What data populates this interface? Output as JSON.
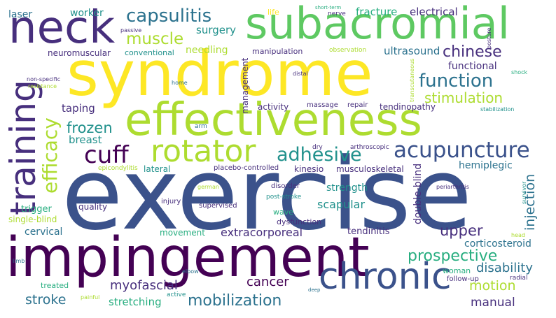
{
  "palette": {
    "purple": "#440154",
    "indigo": "#472f7d",
    "blue": "#3b528b",
    "slate": "#2c728e",
    "teal": "#21918c",
    "green": "#28ae80",
    "lime": "#5ec962",
    "yellowgreen": "#addc30",
    "yellow": "#fde725"
  },
  "words": [
    {
      "text": "exercise",
      "color": "blue"
    },
    {
      "text": "syndrome",
      "color": "yellow"
    },
    {
      "text": "impingement",
      "color": "purple"
    },
    {
      "text": "effectiveness",
      "color": "yellowgreen"
    },
    {
      "text": "subacromial",
      "color": "lime"
    },
    {
      "text": "neck",
      "color": "indigo"
    },
    {
      "text": "training",
      "color": "indigo"
    },
    {
      "text": "chronic",
      "color": "blue"
    },
    {
      "text": "rotator",
      "color": "yellowgreen"
    },
    {
      "text": "acupuncture",
      "color": "blue"
    },
    {
      "text": "cuff",
      "color": "purple"
    },
    {
      "text": "adhesive",
      "color": "teal"
    },
    {
      "text": "efficacy",
      "color": "yellowgreen"
    },
    {
      "text": "capsulitis",
      "color": "slate"
    },
    {
      "text": "function",
      "color": "slate"
    },
    {
      "text": "muscle",
      "color": "yellowgreen"
    },
    {
      "text": "prospective",
      "color": "green"
    },
    {
      "text": "mobilization",
      "color": "slate"
    },
    {
      "text": "chinese",
      "color": "indigo"
    },
    {
      "text": "stimulation",
      "color": "yellowgreen"
    },
    {
      "text": "frozen",
      "color": "teal"
    },
    {
      "text": "upper",
      "color": "indigo"
    },
    {
      "text": "stroke",
      "color": "slate"
    },
    {
      "text": "motion",
      "color": "yellowgreen"
    },
    {
      "text": "injection",
      "color": "slate"
    },
    {
      "text": "myofascial",
      "color": "indigo"
    },
    {
      "text": "cancer",
      "color": "purple"
    },
    {
      "text": "disability",
      "color": "slate"
    },
    {
      "text": "extracorporeal",
      "color": "indigo"
    },
    {
      "text": "scapular",
      "color": "teal"
    },
    {
      "text": "manual",
      "color": "indigo"
    },
    {
      "text": "stretching",
      "color": "green"
    },
    {
      "text": "fracture",
      "color": "green"
    },
    {
      "text": "electrical",
      "color": "indigo"
    },
    {
      "text": "surgery",
      "color": "teal"
    },
    {
      "text": "ultrasound",
      "color": "slate"
    },
    {
      "text": "taping",
      "color": "indigo"
    },
    {
      "text": "breast",
      "color": "teal"
    },
    {
      "text": "functional",
      "color": "indigo"
    },
    {
      "text": "worker",
      "color": "teal"
    },
    {
      "text": "laser",
      "color": "slate"
    },
    {
      "text": "needling",
      "color": "yellowgreen"
    },
    {
      "text": "management",
      "color": "indigo"
    },
    {
      "text": "hemiplegic",
      "color": "slate"
    },
    {
      "text": "strength",
      "color": "teal"
    },
    {
      "text": "corticosteroid",
      "color": "slate"
    },
    {
      "text": "cervical",
      "color": "slate"
    },
    {
      "text": "tendinopathy",
      "color": "indigo"
    },
    {
      "text": "activity",
      "color": "indigo"
    },
    {
      "text": "double-blind",
      "color": "indigo"
    },
    {
      "text": "tendinitis",
      "color": "indigo"
    },
    {
      "text": "lateral",
      "color": "teal"
    },
    {
      "text": "trigger",
      "color": "green"
    },
    {
      "text": "quality",
      "color": "indigo"
    },
    {
      "text": "movement",
      "color": "green"
    },
    {
      "text": "musculoskeletal",
      "color": "indigo"
    },
    {
      "text": "kinesio",
      "color": "indigo"
    },
    {
      "text": "single-blind",
      "color": "yellowgreen"
    },
    {
      "text": "neuromuscular",
      "color": "indigo"
    },
    {
      "text": "conventional",
      "color": "teal"
    },
    {
      "text": "manipulation",
      "color": "indigo"
    },
    {
      "text": "placebo-controlled",
      "color": "indigo"
    },
    {
      "text": "treated",
      "color": "green"
    },
    {
      "text": "woman",
      "color": "green"
    },
    {
      "text": "wave",
      "color": "green"
    },
    {
      "text": "dysfunction",
      "color": "indigo"
    },
    {
      "text": "supervised",
      "color": "indigo"
    },
    {
      "text": "repair",
      "color": "indigo"
    },
    {
      "text": "massage",
      "color": "indigo"
    },
    {
      "text": "injury",
      "color": "indigo"
    },
    {
      "text": "disorder",
      "color": "indigo"
    },
    {
      "text": "follow-up",
      "color": "indigo"
    },
    {
      "text": "life",
      "color": "yellow"
    },
    {
      "text": "nerve",
      "color": "indigo"
    },
    {
      "text": "short-term",
      "color": "green"
    },
    {
      "text": "posture",
      "color": "indigo"
    },
    {
      "text": "passive",
      "color": "indigo"
    },
    {
      "text": "observation",
      "color": "yellowgreen"
    },
    {
      "text": "non-specific",
      "color": "indigo"
    },
    {
      "text": "resistance",
      "color": "yellowgreen"
    },
    {
      "text": "distal",
      "color": "indigo"
    },
    {
      "text": "home",
      "color": "slate"
    },
    {
      "text": "transcutaneous",
      "color": "yellowgreen"
    },
    {
      "text": "shock",
      "color": "green"
    },
    {
      "text": "stabilization",
      "color": "teal"
    },
    {
      "text": "arthroscopic",
      "color": "indigo"
    },
    {
      "text": "dry",
      "color": "indigo"
    },
    {
      "text": "arm",
      "color": "slate"
    },
    {
      "text": "epicondylitis",
      "color": "yellowgreen"
    },
    {
      "text": "german",
      "color": "yellowgreen"
    },
    {
      "text": "periarthritis",
      "color": "indigo"
    },
    {
      "text": "survivor",
      "color": "teal"
    },
    {
      "text": "post-stroke",
      "color": "teal"
    },
    {
      "text": "head",
      "color": "yellowgreen"
    },
    {
      "text": "limb",
      "color": "slate"
    },
    {
      "text": "elbow",
      "color": "slate"
    },
    {
      "text": "radial",
      "color": "indigo"
    },
    {
      "text": "painful",
      "color": "yellowgreen"
    },
    {
      "text": "active",
      "color": "teal"
    },
    {
      "text": "deep",
      "color": "slate"
    }
  ]
}
